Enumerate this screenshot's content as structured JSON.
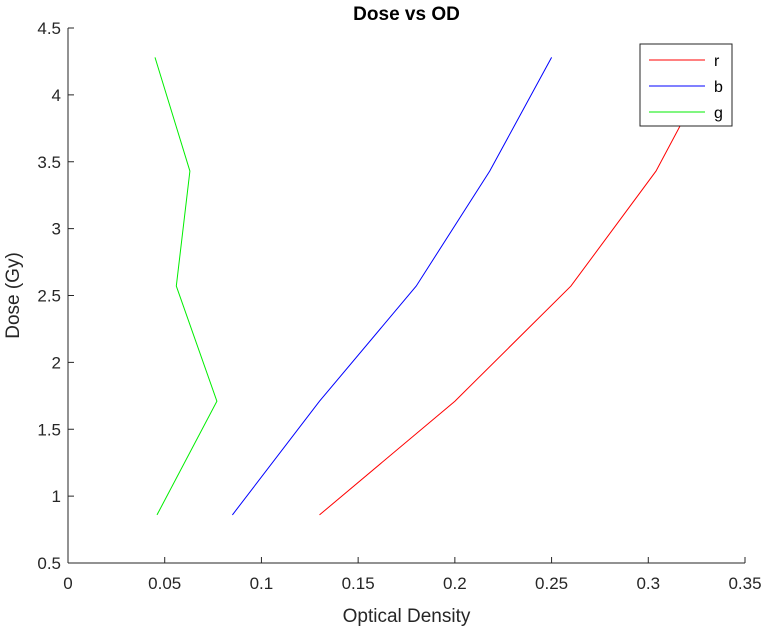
{
  "chart_data": {
    "type": "line",
    "title": "Dose vs OD",
    "xlabel": "Optical Density",
    "ylabel": "Dose (Gy)",
    "xlim": [
      0,
      0.35
    ],
    "ylim": [
      0.5,
      4.5
    ],
    "x_ticks": [
      "0",
      "0.05",
      "0.1",
      "0.15",
      "0.2",
      "0.25",
      "0.3",
      "0.35"
    ],
    "y_ticks": [
      "0.5",
      "1",
      "1.5",
      "2",
      "2.5",
      "3",
      "3.5",
      "4",
      "4.5"
    ],
    "grid": false,
    "legend_position": "top-right",
    "series": [
      {
        "name": "r",
        "color": "#ff0000",
        "x": [
          0.13,
          0.2,
          0.26,
          0.304,
          0.325
        ],
        "y": [
          0.86,
          1.71,
          2.57,
          3.43,
          4.0
        ]
      },
      {
        "name": "b",
        "color": "#0000ff",
        "x": [
          0.085,
          0.13,
          0.18,
          0.218,
          0.25
        ],
        "y": [
          0.86,
          1.71,
          2.57,
          3.43,
          4.28
        ]
      },
      {
        "name": "g",
        "color": "#00ee00",
        "x": [
          0.046,
          0.077,
          0.056,
          0.063,
          0.045
        ],
        "y": [
          0.86,
          1.71,
          2.57,
          3.43,
          4.28
        ]
      }
    ]
  }
}
